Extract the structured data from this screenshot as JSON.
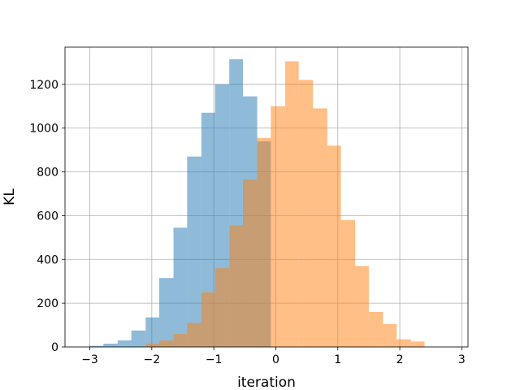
{
  "chart_data": {
    "type": "bar",
    "subtype": "overlapping-histogram",
    "title": "",
    "xlabel": "iteration",
    "ylabel": "KL",
    "xlim": [
      -3.4,
      3.1
    ],
    "ylim": [
      0,
      1370
    ],
    "grid": true,
    "xticks": [
      -3,
      -2,
      -1,
      0,
      1,
      2,
      3
    ],
    "xtick_labels": [
      "−3",
      "−2",
      "−1",
      "0",
      "1",
      "2",
      "3"
    ],
    "yticks": [
      0,
      200,
      400,
      600,
      800,
      1000,
      1200
    ],
    "ytick_labels": [
      "0",
      "200",
      "400",
      "600",
      "800",
      "1000",
      "1200"
    ],
    "colors": {
      "blue": "#1f77b4",
      "orange": "#ff7f0e",
      "alpha": 0.5
    },
    "series": [
      {
        "color": "#1f77b4",
        "bin_edges": [
          -3.0,
          -2.78,
          -2.55,
          -2.33,
          -2.1,
          -1.88,
          -1.65,
          -1.43,
          -1.2,
          -0.98,
          -0.75,
          -0.53,
          -0.3,
          -0.08
        ],
        "counts": [
          5,
          15,
          30,
          75,
          135,
          315,
          545,
          870,
          1070,
          1200,
          1315,
          1145,
          940
        ]
      },
      {
        "color": "#ff7f0e",
        "bin_edges": [
          -2.1,
          -1.88,
          -1.65,
          -1.43,
          -1.2,
          -0.98,
          -0.75,
          -0.53,
          -0.3,
          -0.08,
          0.15,
          0.37,
          0.6,
          0.83,
          1.05,
          1.28,
          1.5,
          1.73,
          1.95,
          2.18,
          2.4
        ],
        "counts": [
          15,
          30,
          60,
          110,
          250,
          360,
          555,
          765,
          955,
          1100,
          1305,
          1220,
          1090,
          920,
          580,
          370,
          160,
          105,
          35,
          25
        ]
      }
    ]
  }
}
